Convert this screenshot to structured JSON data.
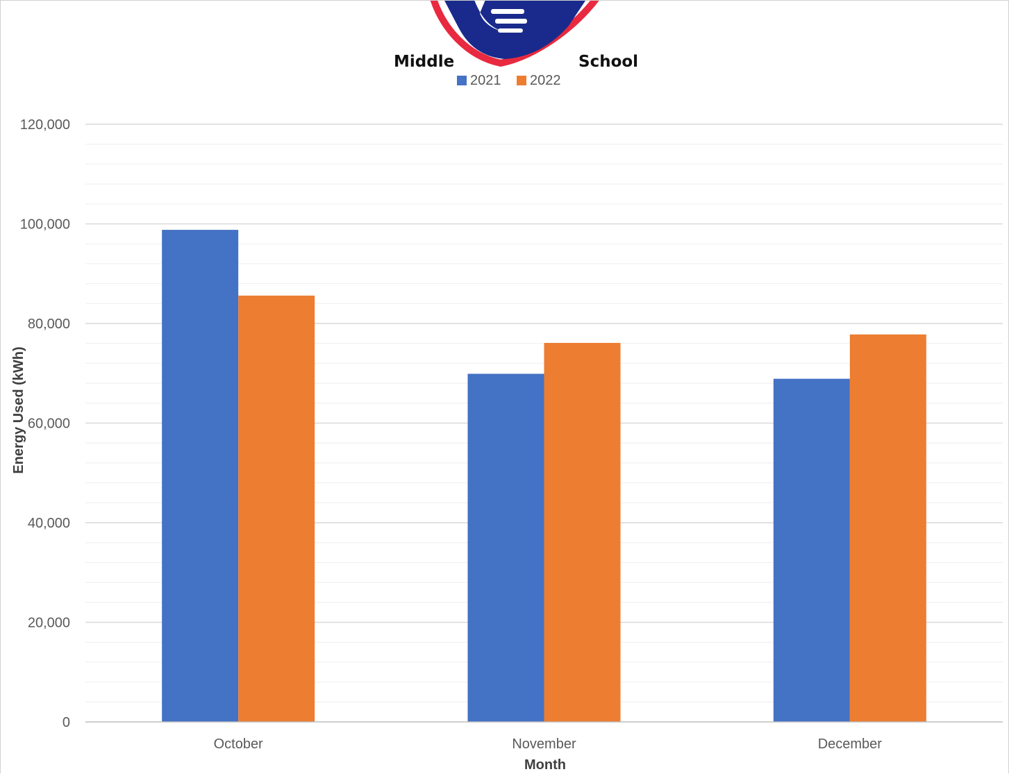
{
  "logo": {
    "word_left": "Middle",
    "word_right": "School",
    "colors": {
      "red": "#e8293f",
      "navy": "#1a2a8c",
      "white": "#ffffff"
    }
  },
  "chart_data": {
    "type": "bar",
    "title": "",
    "xlabel": "Month",
    "ylabel": "Energy Used (kWh)",
    "categories": [
      "October",
      "November",
      "December"
    ],
    "series": [
      {
        "name": "2021",
        "color": "#4472c4",
        "values": [
          98800,
          69900,
          68900
        ]
      },
      {
        "name": "2022",
        "color": "#ed7d31",
        "values": [
          85600,
          76100,
          77800
        ]
      }
    ],
    "ylim": [
      0,
      120000
    ],
    "yticks": [
      0,
      20000,
      40000,
      60000,
      80000,
      100000,
      120000
    ],
    "ytick_labels": [
      "0",
      "20,000",
      "40,000",
      "60,000",
      "80,000",
      "100,000",
      "120,000"
    ],
    "minor_gridlines_per_major": 5,
    "grid": true,
    "legend_position": "top-center",
    "gridline_color": "#d9d9d9",
    "minor_gridline_color": "#eeeeee"
  }
}
